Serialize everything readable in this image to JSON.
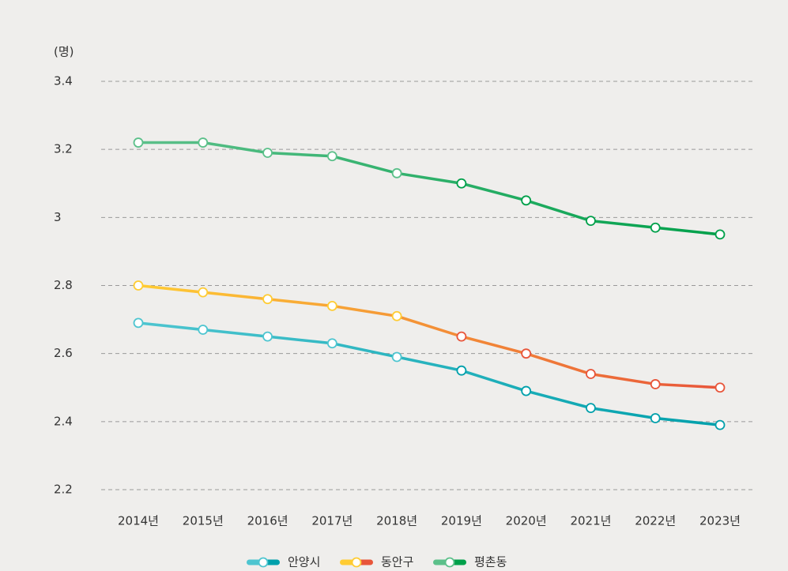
{
  "chart_data": {
    "type": "line",
    "y_label": "(명)",
    "categories": [
      "2014년",
      "2015년",
      "2016년",
      "2017년",
      "2018년",
      "2019년",
      "2020년",
      "2021년",
      "2022년",
      "2023년"
    ],
    "series": [
      {
        "name": "안양시",
        "color": "#4ec5d0",
        "color_end": "#00a0ab",
        "values": [
          2.69,
          2.67,
          2.65,
          2.63,
          2.59,
          2.55,
          2.49,
          2.44,
          2.41,
          2.39
        ]
      },
      {
        "name": "동안구",
        "color": "#ffcc33",
        "color_end": "#e8553a",
        "values": [
          2.8,
          2.78,
          2.76,
          2.74,
          2.71,
          2.65,
          2.6,
          2.54,
          2.51,
          2.5
        ]
      },
      {
        "name": "평촌동",
        "color": "#5cc08a",
        "color_end": "#00a04a",
        "values": [
          3.22,
          3.22,
          3.19,
          3.18,
          3.13,
          3.1,
          3.05,
          2.99,
          2.97,
          2.95
        ]
      }
    ],
    "ylim": [
      2.2,
      3.4
    ],
    "yticks": [
      2.2,
      2.4,
      2.6,
      2.8,
      3,
      3.2,
      3.4
    ],
    "grid": true
  }
}
